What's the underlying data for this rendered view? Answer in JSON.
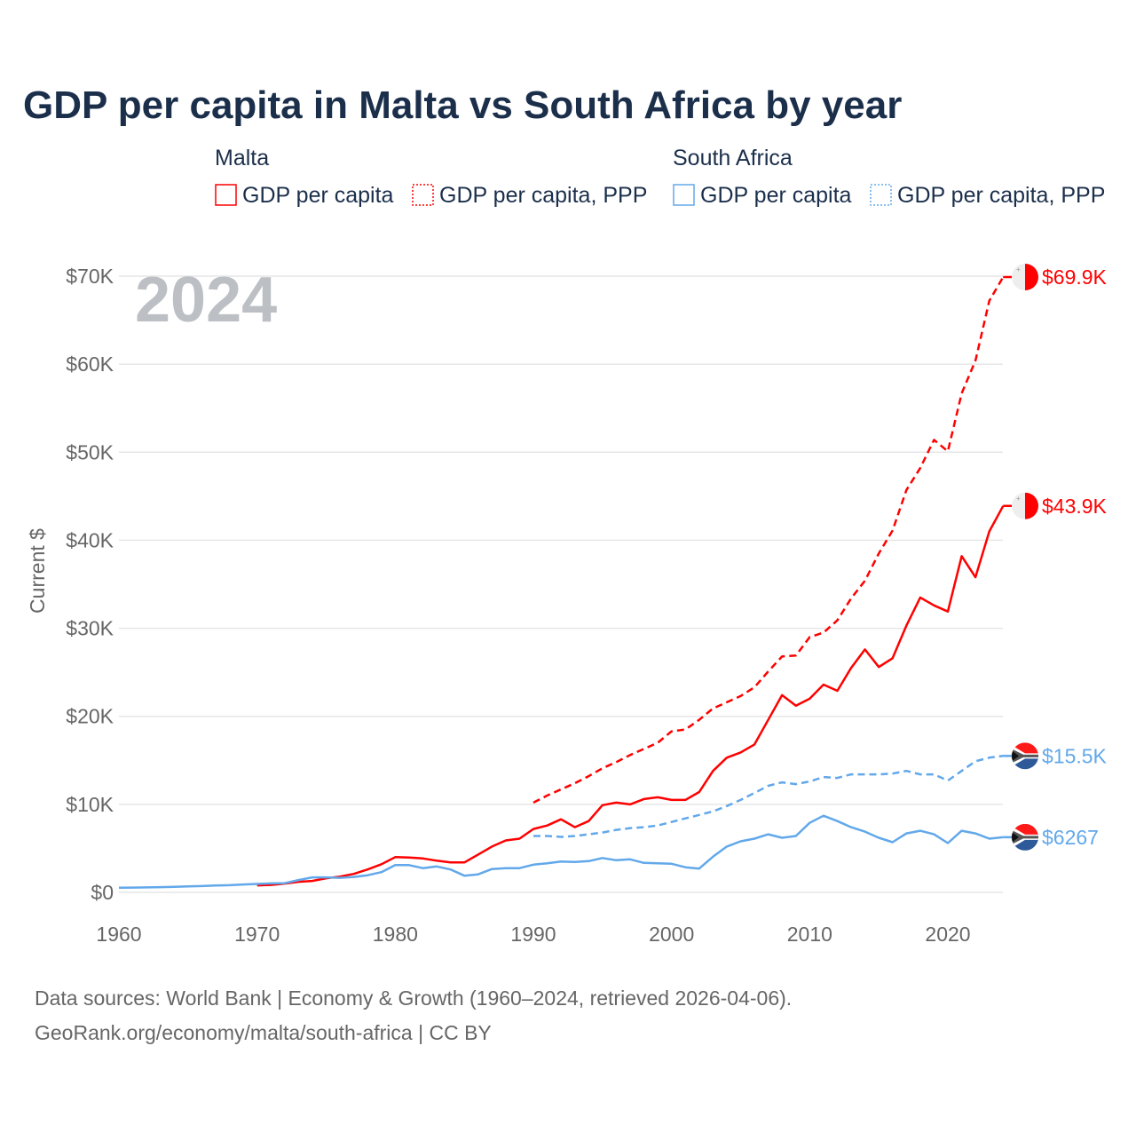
{
  "chart_data": {
    "type": "line",
    "title": "GDP per capita in Malta vs South Africa by year",
    "xlabel": "",
    "ylabel": "Current $",
    "xlim": [
      1960,
      2024
    ],
    "ylim": [
      0,
      70000
    ],
    "grid": true,
    "legend_placement": "top",
    "x_ticks": [
      "1960",
      "1970",
      "1980",
      "1990",
      "2000",
      "2010",
      "2020"
    ],
    "x_tick_values": [
      1960,
      1970,
      1980,
      1990,
      2000,
      2010,
      2020
    ],
    "y_ticks": [
      "$0",
      "$10K",
      "$20K",
      "$30K",
      "$40K",
      "$50K",
      "$60K",
      "$70K"
    ],
    "y_tick_values": [
      0,
      10000,
      20000,
      30000,
      40000,
      50000,
      60000,
      70000
    ],
    "highlight_year": "2024",
    "legend": {
      "groups": [
        {
          "name": "Malta",
          "items": [
            "GDP per capita",
            "GDP per capita, PPP"
          ]
        },
        {
          "name": "South Africa",
          "items": [
            "GDP per capita",
            "GDP per capita, PPP"
          ]
        }
      ]
    },
    "series": [
      {
        "name": "Malta GDP per capita",
        "country": "Malta",
        "style": "solid",
        "color": "#ff0000",
        "end_label": "$43.9K",
        "start_year": 1970,
        "values": [
          800,
          850,
          1000,
          1200,
          1300,
          1600,
          1800,
          2100,
          2600,
          3200,
          4000,
          3950,
          3850,
          3600,
          3400,
          3400,
          4300,
          5200,
          5900,
          6100,
          7200,
          7600,
          8300,
          7400,
          8100,
          9900,
          10200,
          10000,
          10600,
          10800,
          10500,
          10500,
          11400,
          13800,
          15300,
          15900,
          16800,
          19600,
          22400,
          21200,
          22000,
          23600,
          22900,
          25500,
          27600,
          25600,
          26600,
          30300,
          33500,
          32600,
          31900,
          38200,
          35800,
          41000,
          43900
        ]
      },
      {
        "name": "Malta GDP per capita, PPP",
        "country": "Malta",
        "style": "dashed",
        "color": "#ff0000",
        "end_label": "$69.9K",
        "start_year": 1990,
        "values": [
          10200,
          11000,
          11700,
          12400,
          13200,
          14100,
          14800,
          15600,
          16300,
          17000,
          18300,
          18500,
          19600,
          20900,
          21600,
          22300,
          23300,
          25100,
          26800,
          26900,
          29000,
          29500,
          30900,
          33400,
          35400,
          38500,
          41100,
          45700,
          48200,
          51400,
          50100,
          56700,
          60400,
          67200,
          69900
        ]
      },
      {
        "name": "South Africa GDP per capita",
        "country": "South Africa",
        "style": "solid",
        "color": "#62a8ea",
        "end_label": "$6267",
        "start_year": 1960,
        "values": [
          530,
          540,
          560,
          600,
          640,
          680,
          720,
          780,
          820,
          900,
          960,
          1020,
          1050,
          1400,
          1700,
          1700,
          1650,
          1750,
          1950,
          2300,
          3100,
          3100,
          2750,
          2950,
          2600,
          1900,
          2050,
          2650,
          2750,
          2750,
          3150,
          3300,
          3500,
          3450,
          3550,
          3900,
          3650,
          3750,
          3350,
          3300,
          3250,
          2850,
          2700,
          4050,
          5200,
          5800,
          6100,
          6600,
          6200,
          6400,
          7900,
          8700,
          8100,
          7400,
          6900,
          6200,
          5700,
          6700,
          7000,
          6600,
          5600,
          7000,
          6700,
          6100,
          6267
        ]
      },
      {
        "name": "South Africa GDP per capita, PPP",
        "country": "South Africa",
        "style": "dashed",
        "color": "#62a8ea",
        "end_label": "$15.5K",
        "start_year": 1990,
        "values": [
          6400,
          6400,
          6300,
          6400,
          6600,
          6800,
          7100,
          7300,
          7400,
          7600,
          8000,
          8400,
          8800,
          9200,
          9800,
          10500,
          11300,
          12100,
          12500,
          12300,
          12600,
          13100,
          13000,
          13400,
          13400,
          13400,
          13500,
          13800,
          13400,
          13400,
          12700,
          13800,
          14900,
          15300,
          15500
        ]
      }
    ],
    "source_lines": [
      "Data sources: World Bank | Economy & Growth (1960–2024, retrieved 2026-04-06).",
      "GeoRank.org/economy/malta/south-africa | CC BY"
    ]
  }
}
